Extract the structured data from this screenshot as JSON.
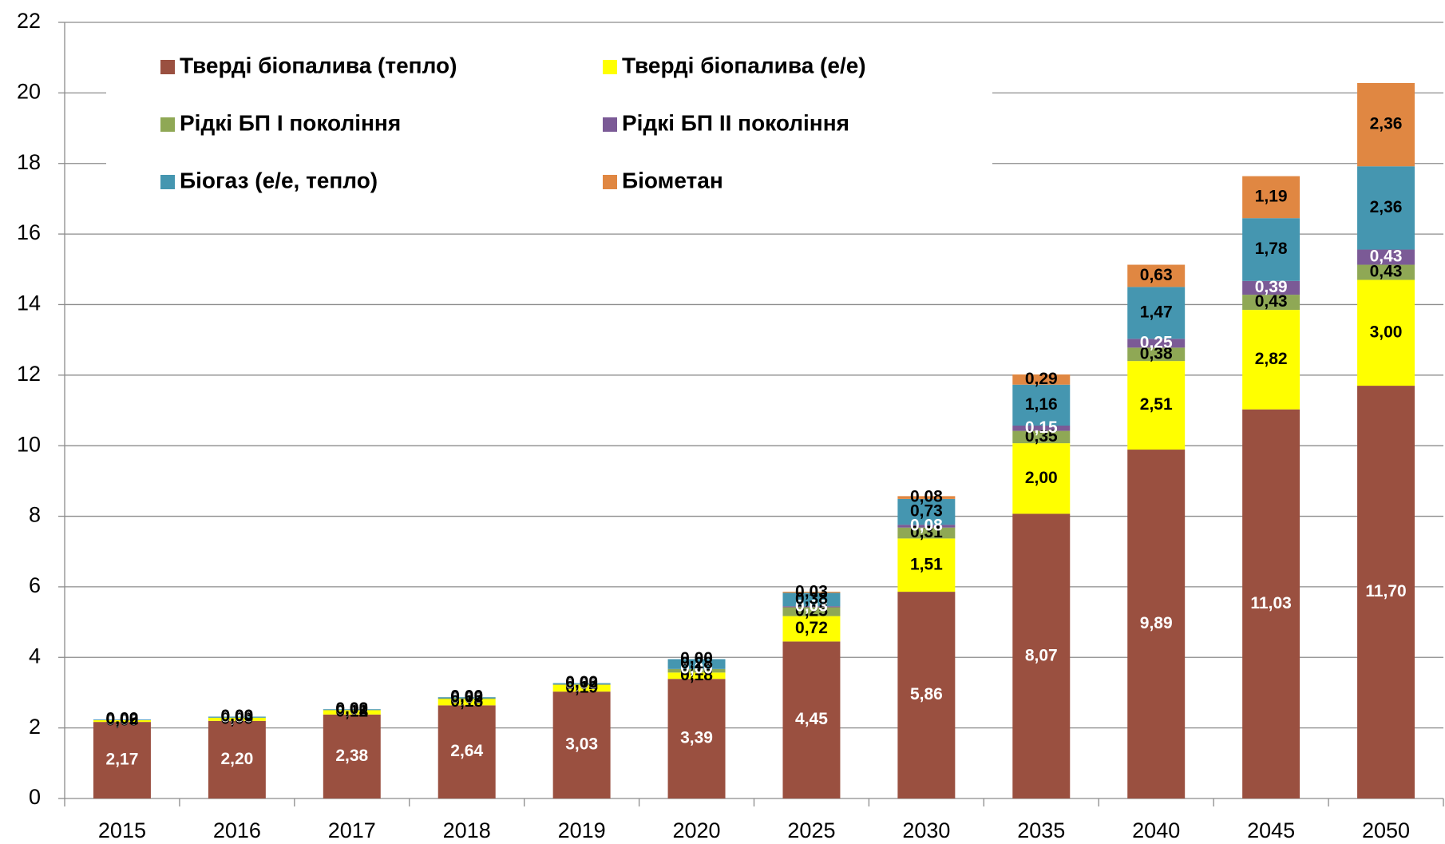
{
  "chart_data": {
    "type": "stacked_bar",
    "categories": [
      "2015",
      "2016",
      "2017",
      "2018",
      "2019",
      "2020",
      "2025",
      "2030",
      "2035",
      "2040",
      "2045",
      "2050"
    ],
    "series": [
      {
        "name": "Тверді біопалива (тепло)",
        "color": "#9a5040",
        "label_color": "#ffffff",
        "values": [
          2.17,
          2.2,
          2.38,
          2.64,
          3.03,
          3.39,
          4.45,
          5.86,
          8.07,
          9.89,
          11.03,
          11.7
        ],
        "value_labels": [
          "2,17",
          "2,20",
          "2,38",
          "2,64",
          "3,03",
          "3,39",
          "4,45",
          "5,86",
          "8,07",
          "9,89",
          "11,03",
          "11,70"
        ]
      },
      {
        "name": "Тверді біопалива (е/е)",
        "color": "#ffff00",
        "label_color": "#000000",
        "values": [
          0.05,
          0.09,
          0.12,
          0.18,
          0.19,
          0.18,
          0.72,
          1.51,
          2.0,
          2.51,
          2.82,
          3.0
        ],
        "value_labels": [
          "0,05",
          "0,09",
          "0,12",
          "0,18",
          "0,19",
          "0,18",
          "0,72",
          "1,51",
          "2,00",
          "2,51",
          "2,82",
          "3,00"
        ]
      },
      {
        "name": "Рідкі БП І покоління",
        "color": "#8fa855",
        "label_color": "#000000",
        "values": [
          0.0,
          0.0,
          0.01,
          0.02,
          0.02,
          0.1,
          0.25,
          0.31,
          0.35,
          0.38,
          0.43,
          0.43
        ],
        "value_labels": [
          "0,00",
          "0,00",
          "0,01",
          "0,02",
          "0,02",
          "0,10",
          "0,25",
          "0,31",
          "0,35",
          "0,38",
          "0,43",
          "0,43"
        ]
      },
      {
        "name": "Рідкі БП ІІ покоління",
        "color": "#7b5a96",
        "label_color": "#ffffff",
        "values": [
          0.0,
          0.0,
          0.0,
          0.0,
          0.0,
          0.0,
          0.03,
          0.08,
          0.15,
          0.25,
          0.39,
          0.43
        ],
        "value_labels": [
          "0,00",
          "0,00",
          "0,00",
          "0,00",
          "0,00",
          "0,00",
          "0,03",
          "0,08",
          "0,15",
          "0,25",
          "0,39",
          "0,43"
        ]
      },
      {
        "name": "Біогаз (е/е, тепло)",
        "color": "#4596b0",
        "label_color": "#000000",
        "values": [
          0.02,
          0.03,
          0.02,
          0.03,
          0.03,
          0.28,
          0.38,
          0.73,
          1.16,
          1.47,
          1.78,
          2.36
        ],
        "value_labels": [
          "0,02",
          "0,03",
          "0,02",
          "0,03",
          "0,03",
          "0,28",
          "0,38",
          "0,73",
          "1,16",
          "1,47",
          "1,78",
          "2,36"
        ]
      },
      {
        "name": "Біометан",
        "color": "#e08742",
        "label_color": "#000000",
        "values": [
          0.0,
          0.0,
          0.0,
          0.0,
          0.0,
          0.0,
          0.03,
          0.08,
          0.29,
          0.63,
          1.19,
          2.36
        ],
        "value_labels": [
          "0,00",
          "0,00",
          "0,00",
          "0,00",
          "0,00",
          "0,00",
          "0,03",
          "0,08",
          "0,29",
          "0,63",
          "1,19",
          "2,36"
        ]
      }
    ],
    "ylim": [
      0,
      22
    ],
    "yticks": [
      0,
      2,
      4,
      6,
      8,
      10,
      12,
      14,
      16,
      18,
      20,
      22
    ],
    "grid": true,
    "legend": "top-left"
  }
}
